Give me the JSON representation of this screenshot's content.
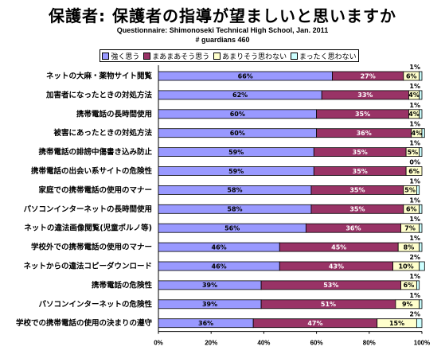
{
  "chart_data": {
    "type": "bar",
    "orientation": "horizontal",
    "stacked": true,
    "title": "保護者:  保護者の指導が望ましいと思いますか",
    "subtitle": "Questionnaire: Shimonoseki Technical High School, Jan. 2011",
    "subtitle2": "# guardians 460",
    "legend_position": "top",
    "categories": [
      "ネットの大麻・薬物サイト閲覧",
      "加害者になったときの対処方法",
      "携帯電話の長時間使用",
      "被害にあったときの対処方法",
      "携帯電話の誹謗中傷書き込み防止",
      "携帯電話の出会い系サイトの危険性",
      "家庭での携帯電話の使用のマナー",
      "パソコンインターネットの長時間使用",
      "ネットの違法画像閲覧(児童ポルノ等)",
      "学校外での携帯電話の使用のマナー",
      "ネットからの違法コピーダウンロード",
      "携帯電話の危険性",
      "パソコンインターネットの危険性",
      "学校での携帯電話の使用の決まりの遵守"
    ],
    "series": [
      {
        "name": "強く思う",
        "color": "#9999ff",
        "values": [
          66,
          62,
          60,
          60,
          59,
          59,
          58,
          58,
          56,
          46,
          46,
          39,
          39,
          36
        ],
        "labels": [
          "66%",
          "62%",
          "60%",
          "60%",
          "59%",
          "59%",
          "58%",
          "58%",
          "56%",
          "46%",
          "46%",
          "39%",
          "39%",
          "36%"
        ]
      },
      {
        "name": "まあまあそう思う",
        "color": "#993366",
        "values": [
          27,
          33,
          35,
          36,
          35,
          35,
          35,
          35,
          36,
          45,
          43,
          53,
          51,
          47
        ],
        "labels": [
          "27%",
          "33%",
          "35%",
          "36%",
          "35%",
          "35%",
          "35%",
          "35%",
          "36%",
          "45%",
          "43%",
          "53%",
          "51%",
          "47%"
        ]
      },
      {
        "name": "あまりそう思わない",
        "color": "#ffffcc",
        "values": [
          6,
          4,
          4,
          4,
          5,
          6,
          5,
          6,
          7,
          8,
          10,
          6,
          9,
          15
        ],
        "labels": [
          "6%",
          "4%",
          "4%",
          "4%",
          "5%",
          "6%",
          "5%",
          "6%",
          "7%",
          "8%",
          "10%",
          "6%",
          "9%",
          "15%"
        ]
      },
      {
        "name": "まったく思わない",
        "color": "#ccffff",
        "values": [
          1,
          1,
          1,
          1,
          1,
          0,
          1,
          1,
          1,
          1,
          2,
          1,
          1,
          2
        ],
        "labels": [
          "1%",
          "1%",
          "1%",
          "1%",
          "1%",
          "0%",
          "1%",
          "1%",
          "1%",
          "1%",
          "2%",
          "1%",
          "1%",
          "2%"
        ]
      }
    ],
    "xlim": [
      0,
      100
    ],
    "x_ticks": [
      "0%",
      "20%",
      "40%",
      "60%",
      "80%",
      "100%"
    ],
    "grid": false
  }
}
